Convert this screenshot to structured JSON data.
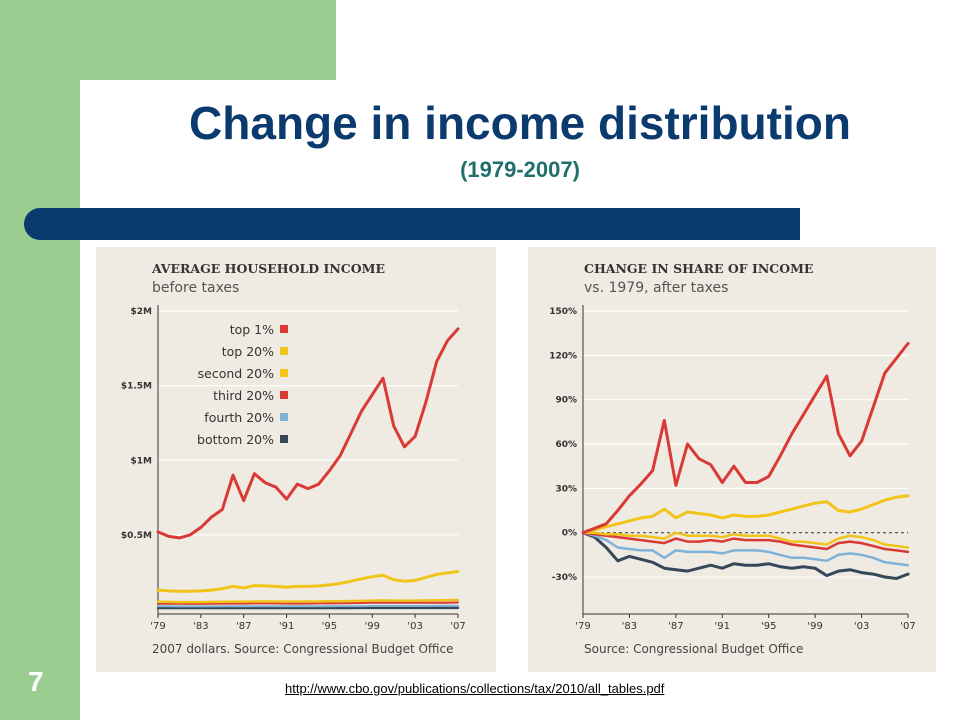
{
  "slide": {
    "title": "Change in income distribution",
    "subtitle": "(1979-2007)",
    "number": "7",
    "source_url": "http://www.cbo.gov/publications/collections/tax/2010/all_tables.pdf"
  },
  "colors": {
    "sidebar_green": "#9acd8f",
    "title_navy": "#0b3a6e",
    "subtitle_teal": "#1f6f6a",
    "top1": "#d93a35",
    "top20": "#f0c419",
    "second20": "#f0c419",
    "third20": "#d93a35",
    "fourth20": "#7fb2d6",
    "bottom20": "#36475a"
  },
  "chart_data": [
    {
      "type": "line",
      "title": "AVERAGE HOUSEHOLD INCOME",
      "subtitle": "before taxes",
      "source": "2007 dollars. Source: Congressional Budget Office",
      "y_ticks": [
        "$2M",
        "$1.5M",
        "$1M",
        "$0.5M"
      ],
      "x_ticks": [
        "'79",
        "'83",
        "'87",
        "'91",
        "'95",
        "'99",
        "'03",
        "'07"
      ],
      "x": [
        1979,
        1980,
        1981,
        1982,
        1983,
        1984,
        1985,
        1986,
        1987,
        1988,
        1989,
        1990,
        1991,
        1992,
        1993,
        1994,
        1995,
        1996,
        1997,
        1998,
        1999,
        2000,
        2001,
        2002,
        2003,
        2004,
        2005,
        2006,
        2007
      ],
      "ylim": [
        -0.03,
        2.0
      ],
      "unit": "millions of 2007 dollars",
      "grid": true,
      "legend_position": "top-left",
      "series": [
        {
          "name": "top 1%",
          "color": "#d93a35",
          "width": 3,
          "values": [
            0.52,
            0.49,
            0.48,
            0.5,
            0.55,
            0.62,
            0.67,
            0.9,
            0.73,
            0.91,
            0.85,
            0.82,
            0.74,
            0.84,
            0.81,
            0.84,
            0.93,
            1.03,
            1.18,
            1.33,
            1.44,
            1.55,
            1.23,
            1.09,
            1.16,
            1.39,
            1.66,
            1.8,
            1.88
          ]
        },
        {
          "name": "top 20%",
          "color": "#f0c419",
          "width": 3,
          "values": [
            0.13,
            0.125,
            0.122,
            0.122,
            0.125,
            0.13,
            0.14,
            0.155,
            0.145,
            0.16,
            0.158,
            0.155,
            0.15,
            0.155,
            0.155,
            0.158,
            0.165,
            0.175,
            0.19,
            0.205,
            0.22,
            0.23,
            0.2,
            0.19,
            0.195,
            0.215,
            0.235,
            0.245,
            0.255
          ]
        },
        {
          "name": "second 20%",
          "color": "#f0c419",
          "width": 2.5,
          "values": [
            0.052,
            0.051,
            0.05,
            0.05,
            0.05,
            0.051,
            0.052,
            0.053,
            0.053,
            0.054,
            0.054,
            0.054,
            0.053,
            0.054,
            0.054,
            0.054,
            0.055,
            0.056,
            0.057,
            0.058,
            0.06,
            0.061,
            0.06,
            0.06,
            0.06,
            0.061,
            0.062,
            0.063,
            0.064
          ]
        },
        {
          "name": "third 20%",
          "color": "#d93a35",
          "width": 2,
          "values": [
            0.04,
            0.039,
            0.039,
            0.038,
            0.038,
            0.039,
            0.04,
            0.04,
            0.04,
            0.041,
            0.041,
            0.041,
            0.04,
            0.04,
            0.04,
            0.041,
            0.041,
            0.042,
            0.043,
            0.044,
            0.045,
            0.045,
            0.045,
            0.045,
            0.045,
            0.045,
            0.046,
            0.046,
            0.047
          ]
        },
        {
          "name": "fourth 20%",
          "color": "#7fb2d6",
          "width": 2,
          "values": [
            0.022,
            0.022,
            0.021,
            0.021,
            0.021,
            0.021,
            0.022,
            0.022,
            0.022,
            0.022,
            0.022,
            0.022,
            0.022,
            0.022,
            0.022,
            0.022,
            0.022,
            0.023,
            0.023,
            0.023,
            0.024,
            0.024,
            0.024,
            0.024,
            0.024,
            0.024,
            0.025,
            0.025,
            0.025
          ]
        },
        {
          "name": "bottom 20%",
          "color": "#36475a",
          "width": 2.5,
          "values": [
            0.01,
            0.01,
            0.01,
            0.01,
            0.01,
            0.01,
            0.01,
            0.01,
            0.01,
            0.01,
            0.01,
            0.01,
            0.01,
            0.01,
            0.01,
            0.01,
            0.01,
            0.01,
            0.01,
            0.011,
            0.011,
            0.011,
            0.011,
            0.011,
            0.011,
            0.011,
            0.011,
            0.011,
            0.011
          ]
        }
      ]
    },
    {
      "type": "line",
      "title": "CHANGE IN SHARE OF INCOME",
      "subtitle": "vs. 1979, after taxes",
      "source": "Source: Congressional Budget Office",
      "y_ticks": [
        "150%",
        "120%",
        "90%",
        "60%",
        "30%",
        "0%",
        "-30%"
      ],
      "x_ticks": [
        "'79",
        "'83",
        "'87",
        "'91",
        "'95",
        "'99",
        "'03",
        "'07"
      ],
      "x": [
        1979,
        1980,
        1981,
        1982,
        1983,
        1984,
        1985,
        1986,
        1987,
        1988,
        1989,
        1990,
        1991,
        1992,
        1993,
        1994,
        1995,
        1996,
        1997,
        1998,
        1999,
        2000,
        2001,
        2002,
        2003,
        2004,
        2005,
        2006,
        2007
      ],
      "ylim": [
        -55,
        150
      ],
      "unit": "percent change vs. 1979",
      "grid": true,
      "zero_line": "dashed",
      "series": [
        {
          "name": "top 1%",
          "color": "#d93a35",
          "width": 3,
          "values": [
            0,
            3,
            6,
            15,
            25,
            33,
            42,
            76,
            32,
            60,
            50,
            46,
            34,
            45,
            34,
            34,
            38,
            52,
            67,
            80,
            93,
            106,
            67,
            52,
            62,
            85,
            108,
            118,
            128
          ]
        },
        {
          "name": "top 20%",
          "color": "#f0c419",
          "width": 3,
          "values": [
            0,
            2,
            4,
            6,
            8,
            10,
            11,
            16,
            10,
            14,
            13,
            12,
            10,
            12,
            11,
            11,
            12,
            14,
            16,
            18,
            20,
            21,
            15,
            14,
            16,
            19,
            22,
            24,
            25
          ]
        },
        {
          "name": "second 20%",
          "color": "#f0c419",
          "width": 2.5,
          "values": [
            0,
            0,
            -1,
            -1,
            -2,
            -2,
            -3,
            -4,
            0,
            -2,
            -2,
            -2,
            -3,
            -1,
            -2,
            -2,
            -2,
            -4,
            -6,
            -6,
            -7,
            -8,
            -4,
            -2,
            -3,
            -5,
            -8,
            -9,
            -10
          ]
        },
        {
          "name": "third 20%",
          "color": "#d93a35",
          "width": 2.5,
          "values": [
            0,
            -1,
            -2,
            -3,
            -4,
            -5,
            -6,
            -7,
            -4,
            -6,
            -6,
            -5,
            -6,
            -4,
            -5,
            -5,
            -5,
            -6,
            -8,
            -9,
            -10,
            -11,
            -7,
            -6,
            -7,
            -9,
            -11,
            -12,
            -13
          ]
        },
        {
          "name": "fourth 20%",
          "color": "#7fb2d6",
          "width": 2.5,
          "values": [
            0,
            -2,
            -5,
            -10,
            -11,
            -12,
            -12,
            -17,
            -12,
            -13,
            -13,
            -13,
            -14,
            -12,
            -12,
            -12,
            -13,
            -15,
            -17,
            -17,
            -18,
            -19,
            -15,
            -14,
            -15,
            -17,
            -20,
            -21,
            -22
          ]
        },
        {
          "name": "bottom 20%",
          "color": "#36475a",
          "width": 3,
          "values": [
            0,
            -3,
            -10,
            -19,
            -16,
            -18,
            -20,
            -24,
            -25,
            -26,
            -24,
            -22,
            -24,
            -21,
            -22,
            -22,
            -21,
            -23,
            -24,
            -23,
            -24,
            -29,
            -26,
            -25,
            -27,
            -28,
            -30,
            -31,
            -28
          ]
        }
      ]
    }
  ]
}
